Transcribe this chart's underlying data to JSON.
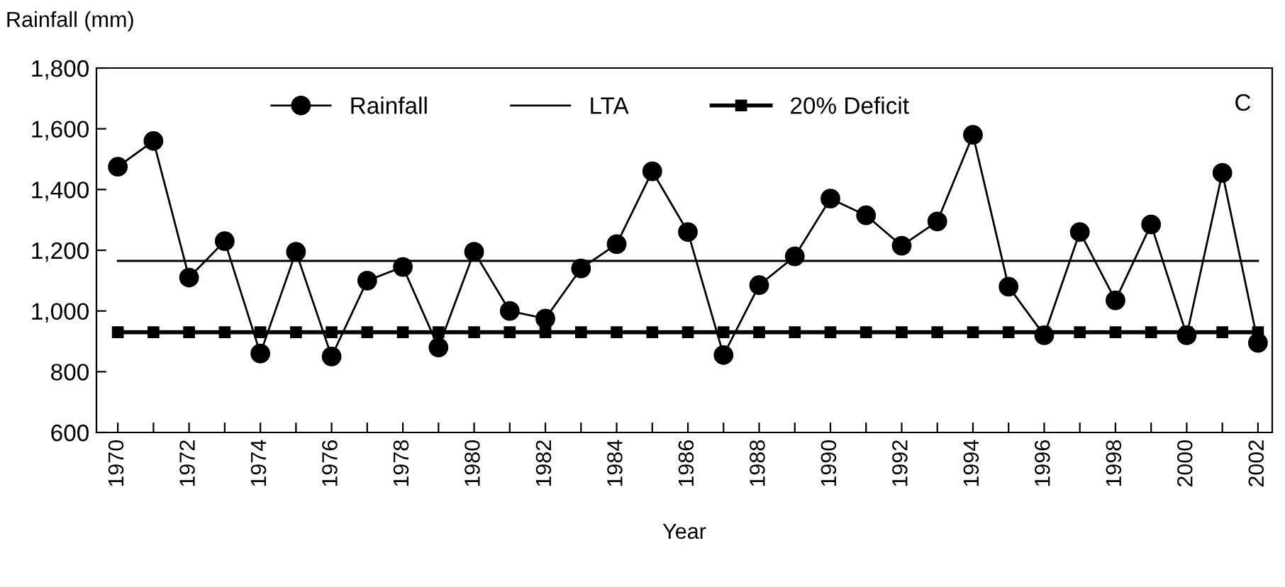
{
  "chart_data": {
    "type": "line",
    "xlabel": "Year",
    "ylabel": "Rainfall (mm)",
    "x": [
      1970,
      1971,
      1972,
      1973,
      1974,
      1975,
      1976,
      1977,
      1978,
      1979,
      1980,
      1981,
      1982,
      1983,
      1984,
      1985,
      1986,
      1987,
      1988,
      1989,
      1990,
      1991,
      1992,
      1993,
      1994,
      1995,
      1996,
      1997,
      1998,
      1999,
      2000,
      2001,
      2002
    ],
    "series": [
      {
        "name": "Rainfall",
        "color": "#000000",
        "marker": "circle",
        "line_style": "solid",
        "values": [
          1475,
          1560,
          1110,
          1230,
          860,
          1195,
          850,
          1100,
          1145,
          880,
          1195,
          1000,
          975,
          1140,
          1220,
          1460,
          1260,
          855,
          1085,
          1180,
          1370,
          1315,
          1215,
          1295,
          1580,
          1080,
          920,
          1260,
          1035,
          1285,
          920,
          1455,
          895
        ]
      },
      {
        "name": "LTA",
        "color": "#000000",
        "marker": "none",
        "line_style": "solid",
        "values": [
          1165,
          1165,
          1165,
          1165,
          1165,
          1165,
          1165,
          1165,
          1165,
          1165,
          1165,
          1165,
          1165,
          1165,
          1165,
          1165,
          1165,
          1165,
          1165,
          1165,
          1165,
          1165,
          1165,
          1165,
          1165,
          1165,
          1165,
          1165,
          1165,
          1165,
          1165,
          1165,
          1165
        ]
      },
      {
        "name": "20% Deficit",
        "color": "#000000",
        "marker": "square",
        "line_style": "solid",
        "values": [
          930,
          930,
          930,
          930,
          930,
          930,
          930,
          930,
          930,
          930,
          930,
          930,
          930,
          930,
          930,
          930,
          930,
          930,
          930,
          930,
          930,
          930,
          930,
          930,
          930,
          930,
          930,
          930,
          930,
          930,
          930,
          930,
          930
        ]
      }
    ],
    "xlim": [
      1969.4,
      2002.4
    ],
    "xticks": [
      1970,
      {
        "value": 1971,
        "label": null
      },
      1972,
      {
        "value": 1973,
        "label": null
      },
      1974,
      {
        "value": 1975,
        "label": null
      },
      1976,
      {
        "value": 1977,
        "label": null
      },
      1978,
      {
        "value": 1979,
        "label": null
      },
      1980,
      {
        "value": 1981,
        "label": null
      },
      1982,
      {
        "value": 1983,
        "label": null
      },
      1984,
      {
        "value": 1985,
        "label": null
      },
      1986,
      {
        "value": 1987,
        "label": null
      },
      1988,
      {
        "value": 1989,
        "label": null
      },
      1990,
      {
        "value": 1991,
        "label": null
      },
      1992,
      {
        "value": 1993,
        "label": null
      },
      1994,
      {
        "value": 1995,
        "label": null
      },
      1996,
      {
        "value": 1997,
        "label": null
      },
      1998,
      {
        "value": 1999,
        "label": null
      },
      2000,
      {
        "value": 2001,
        "label": null
      },
      2002
    ],
    "ylim": [
      600,
      1800
    ],
    "yticks": [
      {
        "value": 600,
        "label": "600"
      },
      {
        "value": 800,
        "label": "800"
      },
      {
        "value": 1000,
        "label": "1,000"
      },
      {
        "value": 1200,
        "label": "1,200"
      },
      {
        "value": 1400,
        "label": "1,400"
      },
      {
        "value": 1600,
        "label": "1,600"
      },
      {
        "value": 1800,
        "label": "1,800"
      }
    ],
    "grid": false,
    "legend": "top",
    "annotations": [
      "C"
    ]
  }
}
